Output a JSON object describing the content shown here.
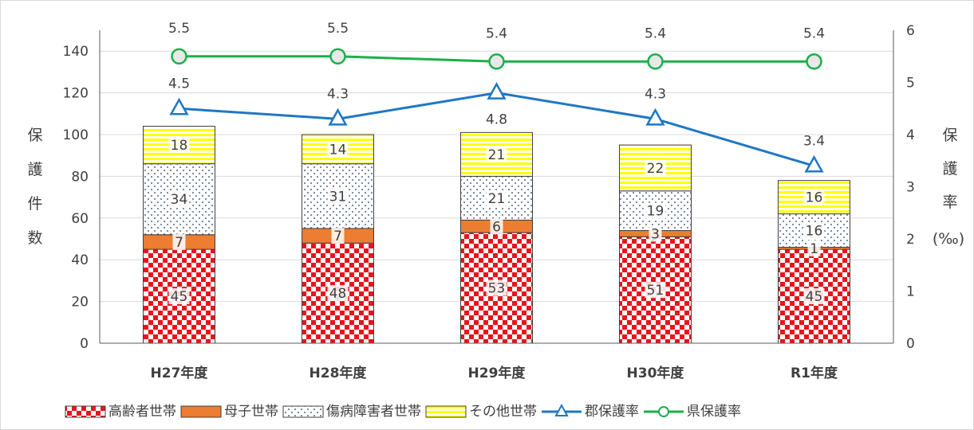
{
  "chart_data": {
    "type": "bar",
    "categories": [
      "H27年度",
      "H28年度",
      "H29年度",
      "H30年度",
      "R1年度"
    ],
    "bar_series": [
      {
        "name": "高齢者世帯",
        "values": [
          45,
          48,
          53,
          51,
          45
        ],
        "color": "#e8141b"
      },
      {
        "name": "母子世帯",
        "values": [
          7,
          7,
          6,
          3,
          1
        ],
        "color": "#ed7d31"
      },
      {
        "name": "傷病障害者世帯",
        "values": [
          34,
          31,
          21,
          19,
          16
        ],
        "color": "#1f3864"
      },
      {
        "name": "その他世帯",
        "values": [
          18,
          14,
          21,
          22,
          16
        ],
        "color": "#ffff00"
      }
    ],
    "line_series": [
      {
        "name": "郡保護率",
        "values": [
          4.5,
          4.3,
          4.8,
          4.3,
          3.4
        ],
        "color": "#1f77c4",
        "marker": "triangle"
      },
      {
        "name": "県保護率",
        "values": [
          5.5,
          5.5,
          5.4,
          5.4,
          5.4
        ],
        "color": "#1ab04b",
        "marker": "circle"
      }
    ],
    "y_left": {
      "label": "保護件数",
      "ylim": [
        0,
        150
      ],
      "ticks": [
        0,
        20,
        40,
        60,
        80,
        100,
        120,
        140
      ]
    },
    "y_right": {
      "label": "保護率",
      "unit": "(‰)",
      "ylim": [
        0,
        6
      ],
      "ticks": [
        0,
        1,
        2,
        3,
        4,
        5,
        6
      ]
    },
    "grid": true,
    "legend_position": "bottom"
  }
}
